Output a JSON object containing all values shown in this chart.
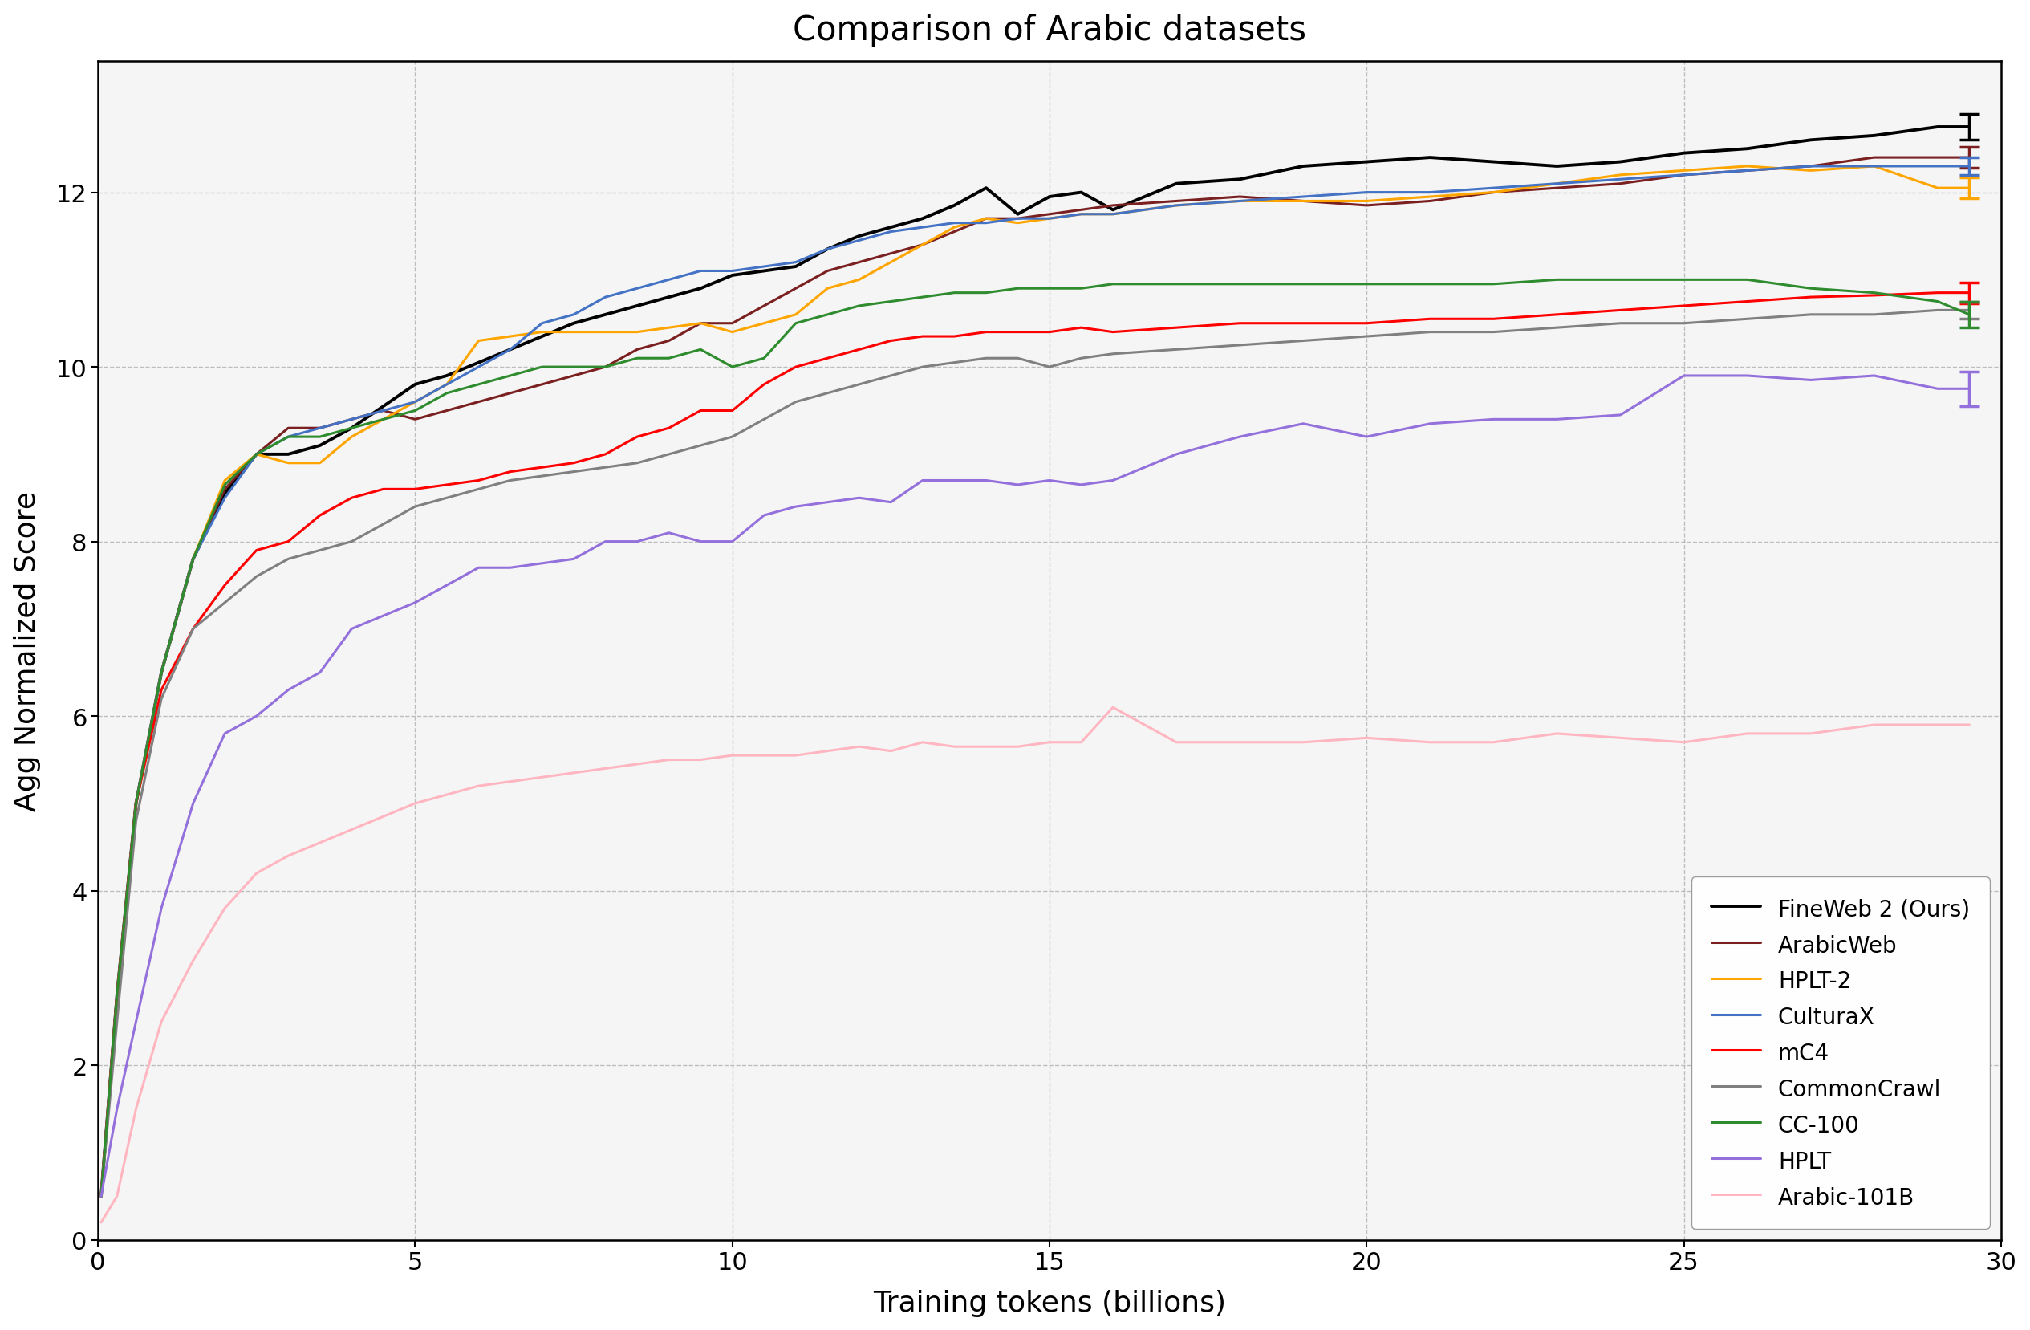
{
  "title": "Comparison of Arabic datasets",
  "xlabel": "Training tokens (billions)",
  "ylabel": "Agg Normalized Score",
  "xlim": [
    0,
    30
  ],
  "ylim": [
    0,
    13.5
  ],
  "series": [
    {
      "name": "FineWeb 2 (Ours)",
      "color": "#000000",
      "linewidth": 2.8,
      "x": [
        0.05,
        0.3,
        0.6,
        1.0,
        1.5,
        2.0,
        2.5,
        3.0,
        3.5,
        4.0,
        4.5,
        5.0,
        5.5,
        6.0,
        6.5,
        7.0,
        7.5,
        8.0,
        8.5,
        9.0,
        9.5,
        10.0,
        10.5,
        11.0,
        11.5,
        12.0,
        12.5,
        13.0,
        13.5,
        14.0,
        14.5,
        15.0,
        15.5,
        16.0,
        17.0,
        18.0,
        19.0,
        20.0,
        21.0,
        22.0,
        23.0,
        24.0,
        25.0,
        26.0,
        27.0,
        28.0,
        29.0,
        29.5
      ],
      "y": [
        0.5,
        2.8,
        5.0,
        6.5,
        7.8,
        8.55,
        9.0,
        9.0,
        9.1,
        9.3,
        9.55,
        9.8,
        9.9,
        10.05,
        10.2,
        10.35,
        10.5,
        10.6,
        10.7,
        10.8,
        10.9,
        11.05,
        11.1,
        11.15,
        11.35,
        11.5,
        11.6,
        11.7,
        11.85,
        12.05,
        11.75,
        11.95,
        12.0,
        11.8,
        12.1,
        12.15,
        12.3,
        12.35,
        12.4,
        12.35,
        12.3,
        12.35,
        12.45,
        12.5,
        12.6,
        12.65,
        12.75,
        12.75
      ],
      "errorbar_x": 29.5,
      "errorbar_y": 12.75,
      "errorbar_yerr": 0.15
    },
    {
      "name": "ArabicWeb",
      "color": "#7B2020",
      "linewidth": 2.2,
      "x": [
        0.05,
        0.3,
        0.6,
        1.0,
        1.5,
        2.0,
        2.5,
        3.0,
        3.5,
        4.0,
        4.5,
        5.0,
        5.5,
        6.0,
        6.5,
        7.0,
        7.5,
        8.0,
        8.5,
        9.0,
        9.5,
        10.0,
        10.5,
        11.0,
        11.5,
        12.0,
        12.5,
        13.0,
        13.5,
        14.0,
        14.5,
        15.0,
        15.5,
        16.0,
        17.0,
        18.0,
        19.0,
        20.0,
        21.0,
        22.0,
        23.0,
        24.0,
        25.0,
        26.0,
        27.0,
        28.0,
        29.0,
        29.5
      ],
      "y": [
        0.5,
        2.8,
        5.0,
        6.5,
        7.8,
        8.6,
        9.0,
        9.3,
        9.3,
        9.4,
        9.5,
        9.4,
        9.5,
        9.6,
        9.7,
        9.8,
        9.9,
        10.0,
        10.2,
        10.3,
        10.5,
        10.5,
        10.7,
        10.9,
        11.1,
        11.2,
        11.3,
        11.4,
        11.55,
        11.7,
        11.7,
        11.75,
        11.8,
        11.85,
        11.9,
        11.95,
        11.9,
        11.85,
        11.9,
        12.0,
        12.05,
        12.1,
        12.2,
        12.25,
        12.3,
        12.4,
        12.4,
        12.4
      ],
      "errorbar_x": 29.5,
      "errorbar_y": 12.4,
      "errorbar_yerr": 0.12
    },
    {
      "name": "HPLT-2",
      "color": "#FFA500",
      "linewidth": 2.2,
      "x": [
        0.05,
        0.3,
        0.6,
        1.0,
        1.5,
        2.0,
        2.5,
        3.0,
        3.5,
        4.0,
        4.5,
        5.0,
        5.5,
        6.0,
        6.5,
        7.0,
        7.5,
        8.0,
        8.5,
        9.0,
        9.5,
        10.0,
        10.5,
        11.0,
        11.5,
        12.0,
        12.5,
        13.0,
        13.5,
        14.0,
        14.5,
        15.0,
        15.5,
        16.0,
        17.0,
        18.0,
        19.0,
        20.0,
        21.0,
        22.0,
        23.0,
        24.0,
        25.0,
        26.0,
        27.0,
        28.0,
        29.0,
        29.5
      ],
      "y": [
        0.5,
        2.8,
        5.0,
        6.5,
        7.8,
        8.7,
        9.0,
        8.9,
        8.9,
        9.2,
        9.4,
        9.6,
        9.8,
        10.3,
        10.35,
        10.4,
        10.4,
        10.4,
        10.4,
        10.45,
        10.5,
        10.4,
        10.5,
        10.6,
        10.9,
        11.0,
        11.2,
        11.4,
        11.6,
        11.7,
        11.65,
        11.7,
        11.75,
        11.75,
        11.85,
        11.9,
        11.9,
        11.9,
        11.95,
        12.0,
        12.1,
        12.2,
        12.25,
        12.3,
        12.25,
        12.3,
        12.05,
        12.05
      ],
      "errorbar_x": 29.5,
      "errorbar_y": 12.05,
      "errorbar_yerr": 0.12
    },
    {
      "name": "CulturaX",
      "color": "#4472C4",
      "linewidth": 2.2,
      "x": [
        0.05,
        0.3,
        0.6,
        1.0,
        1.5,
        2.0,
        2.5,
        3.0,
        3.5,
        4.0,
        4.5,
        5.0,
        5.5,
        6.0,
        6.5,
        7.0,
        7.5,
        8.0,
        8.5,
        9.0,
        9.5,
        10.0,
        10.5,
        11.0,
        11.5,
        12.0,
        12.5,
        13.0,
        13.5,
        14.0,
        14.5,
        15.0,
        15.5,
        16.0,
        17.0,
        18.0,
        19.0,
        20.0,
        21.0,
        22.0,
        23.0,
        24.0,
        25.0,
        26.0,
        27.0,
        28.0,
        29.0,
        29.5
      ],
      "y": [
        0.5,
        2.8,
        5.0,
        6.5,
        7.8,
        8.5,
        9.0,
        9.2,
        9.3,
        9.4,
        9.5,
        9.6,
        9.8,
        10.0,
        10.2,
        10.5,
        10.6,
        10.8,
        10.9,
        11.0,
        11.1,
        11.1,
        11.15,
        11.2,
        11.35,
        11.45,
        11.55,
        11.6,
        11.65,
        11.65,
        11.7,
        11.7,
        11.75,
        11.75,
        11.85,
        11.9,
        11.95,
        12.0,
        12.0,
        12.05,
        12.1,
        12.15,
        12.2,
        12.25,
        12.3,
        12.3,
        12.3,
        12.3
      ],
      "errorbar_x": 29.5,
      "errorbar_y": 12.3,
      "errorbar_yerr": 0.1
    },
    {
      "name": "mC4",
      "color": "#FF0000",
      "linewidth": 2.2,
      "x": [
        0.05,
        0.3,
        0.6,
        1.0,
        1.5,
        2.0,
        2.5,
        3.0,
        3.5,
        4.0,
        4.5,
        5.0,
        5.5,
        6.0,
        6.5,
        7.0,
        7.5,
        8.0,
        8.5,
        9.0,
        9.5,
        10.0,
        10.5,
        11.0,
        11.5,
        12.0,
        12.5,
        13.0,
        13.5,
        14.0,
        14.5,
        15.0,
        15.5,
        16.0,
        17.0,
        18.0,
        19.0,
        20.0,
        21.0,
        22.0,
        23.0,
        24.0,
        25.0,
        26.0,
        27.0,
        28.0,
        29.0,
        29.5
      ],
      "y": [
        0.5,
        2.8,
        5.0,
        6.3,
        7.0,
        7.5,
        7.9,
        8.0,
        8.3,
        8.5,
        8.6,
        8.6,
        8.65,
        8.7,
        8.8,
        8.85,
        8.9,
        9.0,
        9.2,
        9.3,
        9.5,
        9.5,
        9.8,
        10.0,
        10.1,
        10.2,
        10.3,
        10.35,
        10.35,
        10.4,
        10.4,
        10.4,
        10.45,
        10.4,
        10.45,
        10.5,
        10.5,
        10.5,
        10.55,
        10.55,
        10.6,
        10.65,
        10.7,
        10.75,
        10.8,
        10.82,
        10.85,
        10.85
      ],
      "errorbar_x": 29.5,
      "errorbar_y": 10.85,
      "errorbar_yerr": 0.12
    },
    {
      "name": "CommonCrawl",
      "color": "#808080",
      "linewidth": 2.2,
      "x": [
        0.05,
        0.3,
        0.6,
        1.0,
        1.5,
        2.0,
        2.5,
        3.0,
        3.5,
        4.0,
        4.5,
        5.0,
        5.5,
        6.0,
        6.5,
        7.0,
        7.5,
        8.0,
        8.5,
        9.0,
        9.5,
        10.0,
        10.5,
        11.0,
        11.5,
        12.0,
        12.5,
        13.0,
        13.5,
        14.0,
        14.5,
        15.0,
        15.5,
        16.0,
        17.0,
        18.0,
        19.0,
        20.0,
        21.0,
        22.0,
        23.0,
        24.0,
        25.0,
        26.0,
        27.0,
        28.0,
        29.0,
        29.5
      ],
      "y": [
        0.5,
        2.5,
        4.8,
        6.2,
        7.0,
        7.3,
        7.6,
        7.8,
        7.9,
        8.0,
        8.2,
        8.4,
        8.5,
        8.6,
        8.7,
        8.75,
        8.8,
        8.85,
        8.9,
        9.0,
        9.1,
        9.2,
        9.4,
        9.6,
        9.7,
        9.8,
        9.9,
        10.0,
        10.05,
        10.1,
        10.1,
        10.0,
        10.1,
        10.15,
        10.2,
        10.25,
        10.3,
        10.35,
        10.4,
        10.4,
        10.45,
        10.5,
        10.5,
        10.55,
        10.6,
        10.6,
        10.65,
        10.65
      ],
      "errorbar_x": 29.5,
      "errorbar_y": 10.65,
      "errorbar_yerr": 0.1
    },
    {
      "name": "CC-100",
      "color": "#2E8B2E",
      "linewidth": 2.2,
      "x": [
        0.05,
        0.3,
        0.6,
        1.0,
        1.5,
        2.0,
        2.5,
        3.0,
        3.5,
        4.0,
        4.5,
        5.0,
        5.5,
        6.0,
        6.5,
        7.0,
        7.5,
        8.0,
        8.5,
        9.0,
        9.5,
        10.0,
        10.5,
        11.0,
        11.5,
        12.0,
        12.5,
        13.0,
        13.5,
        14.0,
        14.5,
        15.0,
        15.5,
        16.0,
        17.0,
        18.0,
        19.0,
        20.0,
        21.0,
        22.0,
        23.0,
        24.0,
        25.0,
        26.0,
        27.0,
        28.0,
        29.0,
        29.5
      ],
      "y": [
        0.5,
        2.8,
        5.0,
        6.5,
        7.8,
        8.65,
        9.0,
        9.2,
        9.2,
        9.3,
        9.4,
        9.5,
        9.7,
        9.8,
        9.9,
        10.0,
        10.0,
        10.0,
        10.1,
        10.1,
        10.2,
        10.0,
        10.1,
        10.5,
        10.6,
        10.7,
        10.75,
        10.8,
        10.85,
        10.85,
        10.9,
        10.9,
        10.9,
        10.95,
        10.95,
        10.95,
        10.95,
        10.95,
        10.95,
        10.95,
        11.0,
        11.0,
        11.0,
        11.0,
        10.9,
        10.85,
        10.75,
        10.6
      ],
      "errorbar_x": 29.5,
      "errorbar_y": 10.6,
      "errorbar_yerr": 0.15
    },
    {
      "name": "HPLT",
      "color": "#9370DB",
      "linewidth": 2.2,
      "x": [
        0.05,
        0.3,
        0.6,
        1.0,
        1.5,
        2.0,
        2.5,
        3.0,
        3.5,
        4.0,
        4.5,
        5.0,
        5.5,
        6.0,
        6.5,
        7.0,
        7.5,
        8.0,
        8.5,
        9.0,
        9.5,
        10.0,
        10.5,
        11.0,
        11.5,
        12.0,
        12.5,
        13.0,
        13.5,
        14.0,
        14.5,
        15.0,
        15.5,
        16.0,
        17.0,
        18.0,
        19.0,
        20.0,
        21.0,
        22.0,
        23.0,
        24.0,
        25.0,
        26.0,
        27.0,
        28.0,
        29.0,
        29.5
      ],
      "y": [
        0.5,
        1.5,
        2.5,
        3.8,
        5.0,
        5.8,
        6.0,
        6.3,
        6.5,
        7.0,
        7.15,
        7.3,
        7.5,
        7.7,
        7.7,
        7.75,
        7.8,
        8.0,
        8.0,
        8.1,
        8.0,
        8.0,
        8.3,
        8.4,
        8.45,
        8.5,
        8.45,
        8.7,
        8.7,
        8.7,
        8.65,
        8.7,
        8.65,
        8.7,
        9.0,
        9.2,
        9.35,
        9.2,
        9.35,
        9.4,
        9.4,
        9.45,
        9.9,
        9.9,
        9.85,
        9.9,
        9.75,
        9.75
      ],
      "errorbar_x": 29.5,
      "errorbar_y": 9.75,
      "errorbar_yerr": 0.2
    },
    {
      "name": "Arabic-101B",
      "color": "#FFB6C1",
      "linewidth": 2.2,
      "x": [
        0.05,
        0.3,
        0.6,
        1.0,
        1.5,
        2.0,
        2.5,
        3.0,
        3.5,
        4.0,
        4.5,
        5.0,
        5.5,
        6.0,
        6.5,
        7.0,
        7.5,
        8.0,
        8.5,
        9.0,
        9.5,
        10.0,
        10.5,
        11.0,
        11.5,
        12.0,
        12.5,
        13.0,
        13.5,
        14.0,
        14.5,
        15.0,
        15.5,
        16.0,
        17.0,
        18.0,
        19.0,
        20.0,
        21.0,
        22.0,
        23.0,
        24.0,
        25.0,
        26.0,
        27.0,
        28.0,
        29.0,
        29.5
      ],
      "y": [
        0.2,
        0.5,
        1.5,
        2.5,
        3.2,
        3.8,
        4.2,
        4.4,
        4.55,
        4.7,
        4.85,
        5.0,
        5.1,
        5.2,
        5.25,
        5.3,
        5.35,
        5.4,
        5.45,
        5.5,
        5.5,
        5.55,
        5.55,
        5.55,
        5.6,
        5.65,
        5.6,
        5.7,
        5.65,
        5.65,
        5.65,
        5.7,
        5.7,
        6.1,
        5.7,
        5.7,
        5.7,
        5.75,
        5.7,
        5.7,
        5.8,
        5.75,
        5.7,
        5.8,
        5.8,
        5.9,
        5.9,
        5.9
      ],
      "errorbar_x": null,
      "errorbar_y": null,
      "errorbar_yerr": null
    }
  ],
  "xticks": [
    0,
    5,
    10,
    15,
    20,
    25,
    30
  ],
  "yticks": [
    0,
    2,
    4,
    6,
    8,
    10,
    12
  ],
  "grid_linestyle": "--",
  "grid_color": "#b0b0b0",
  "grid_alpha": 0.8,
  "plot_bg_color": "#f5f5f5",
  "fig_bg_color": "#ffffff"
}
